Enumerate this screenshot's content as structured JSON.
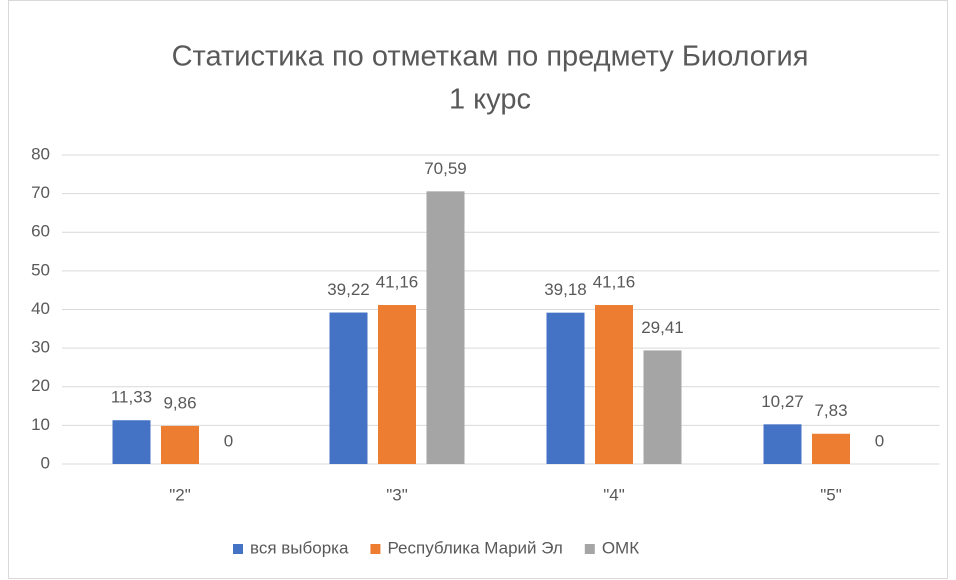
{
  "chart_data": {
    "type": "bar",
    "title": [
      "Статистика по отметкам по предмету Биология",
      "1 курс"
    ],
    "categories": [
      "\"2\"",
      "\"3\"",
      "\"4\"",
      "\"5\""
    ],
    "series": [
      {
        "name": "вся выборка",
        "color": "#4472c4",
        "values": [
          11.33,
          39.22,
          39.18,
          10.27
        ],
        "value_labels": [
          "11,33",
          "39,22",
          "39,18",
          "10,27"
        ]
      },
      {
        "name": "Республика Марий Эл",
        "color": "#ed7d31",
        "values": [
          9.86,
          41.16,
          41.16,
          7.83
        ],
        "value_labels": [
          "9,86",
          "41,16",
          "41,16",
          "7,83"
        ]
      },
      {
        "name": "ОМК",
        "color": "#a5a5a5",
        "values": [
          0,
          70.59,
          29.41,
          0
        ],
        "value_labels": [
          "0",
          "70,59",
          "29,41",
          "0"
        ]
      }
    ],
    "ylim": [
      0,
      80
    ],
    "yticks": [
      0,
      10,
      20,
      30,
      40,
      50,
      60,
      70,
      80
    ],
    "grid": true,
    "legend": "bottom"
  }
}
